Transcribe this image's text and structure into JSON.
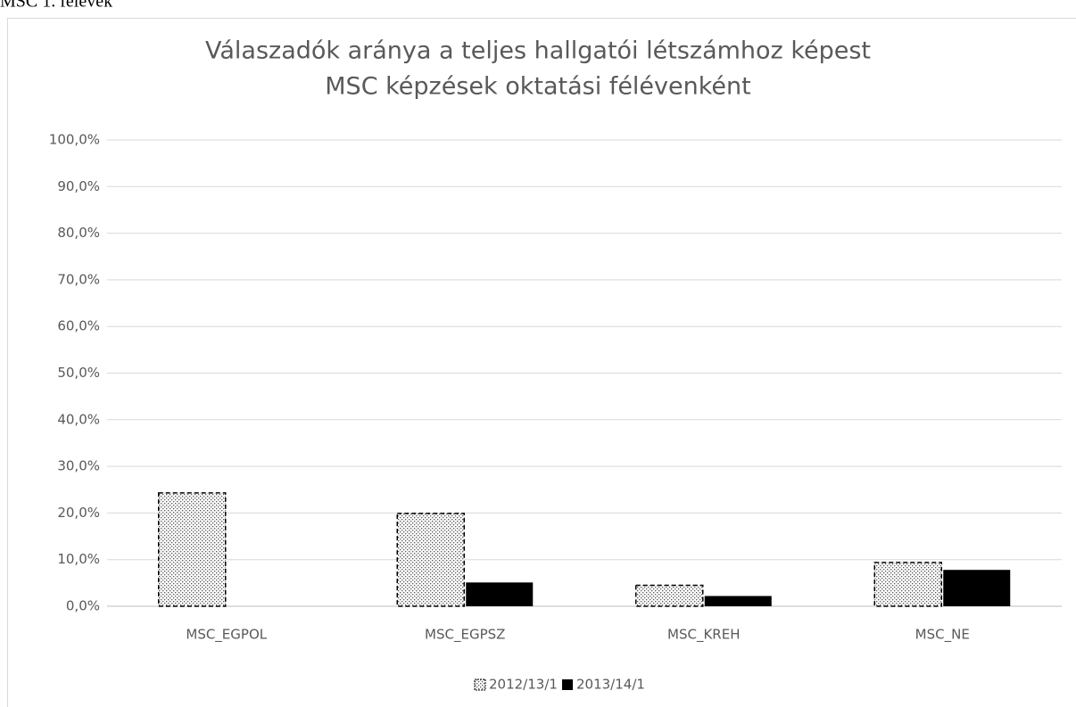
{
  "caption": "MSC 1. félévek",
  "chart_data": {
    "type": "bar",
    "title": "Válaszadók aránya a teljes hallgatói létszámhoz képest",
    "subtitle": "MSC képzések oktatási félévenként",
    "categories": [
      "MSC_EGPOL",
      "MSC_EGPSZ",
      "MSC_KREH",
      "MSC_NE"
    ],
    "series": [
      {
        "name": "2012/13/1",
        "color": "#d9d9d9",
        "values": [
          24.3,
          19.9,
          4.5,
          9.4
        ]
      },
      {
        "name": "2013/14/1",
        "color": "#000000",
        "values": [
          0,
          5.1,
          2.2,
          7.8
        ]
      }
    ],
    "ylim": [
      0,
      100
    ],
    "yticks": [
      {
        "value": 0,
        "label": "0,0%"
      },
      {
        "value": 10,
        "label": "10,0%"
      },
      {
        "value": 20,
        "label": "20,0%"
      },
      {
        "value": 30,
        "label": "30,0%"
      },
      {
        "value": 40,
        "label": "40,0%"
      },
      {
        "value": 50,
        "label": "50,0%"
      },
      {
        "value": 60,
        "label": "60,0%"
      },
      {
        "value": 70,
        "label": "70,0%"
      },
      {
        "value": 80,
        "label": "80,0%"
      },
      {
        "value": 90,
        "label": "90,0%"
      },
      {
        "value": 100,
        "label": "100,0%"
      }
    ],
    "grid": true,
    "legend": "bottom"
  }
}
